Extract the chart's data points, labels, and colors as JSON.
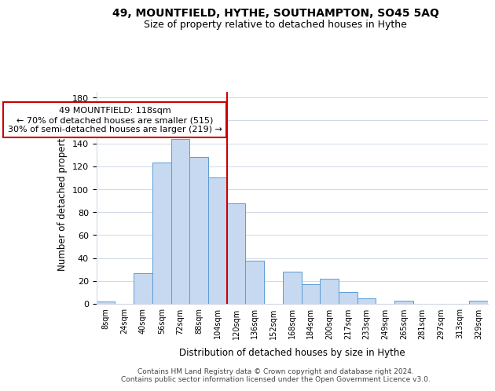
{
  "title": "49, MOUNTFIELD, HYTHE, SOUTHAMPTON, SO45 5AQ",
  "subtitle": "Size of property relative to detached houses in Hythe",
  "xlabel": "Distribution of detached houses by size in Hythe",
  "ylabel": "Number of detached properties",
  "bar_color": "#c6d9f0",
  "bar_edge_color": "#5b9bd5",
  "bins": [
    "8sqm",
    "24sqm",
    "40sqm",
    "56sqm",
    "72sqm",
    "88sqm",
    "104sqm",
    "120sqm",
    "136sqm",
    "152sqm",
    "168sqm",
    "184sqm",
    "200sqm",
    "217sqm",
    "233sqm",
    "249sqm",
    "265sqm",
    "281sqm",
    "297sqm",
    "313sqm",
    "329sqm"
  ],
  "values": [
    2,
    0,
    27,
    123,
    144,
    128,
    110,
    88,
    38,
    0,
    28,
    17,
    22,
    10,
    5,
    0,
    3,
    0,
    0,
    0,
    3
  ],
  "vline_bin_index": 7,
  "property_line_label": "49 MOUNTFIELD: 118sqm",
  "annotation_line1": "← 70% of detached houses are smaller (515)",
  "annotation_line2": "30% of semi-detached houses are larger (219) →",
  "vline_color": "#cc0000",
  "annotation_box_edge_color": "#cc0000",
  "ylim": [
    0,
    185
  ],
  "yticks": [
    0,
    20,
    40,
    60,
    80,
    100,
    120,
    140,
    160,
    180
  ],
  "footer1": "Contains HM Land Registry data © Crown copyright and database right 2024.",
  "footer2": "Contains public sector information licensed under the Open Government Licence v3.0.",
  "background_color": "#ffffff",
  "grid_color": "#d0d8e8",
  "title_fontsize": 10,
  "subtitle_fontsize": 9
}
